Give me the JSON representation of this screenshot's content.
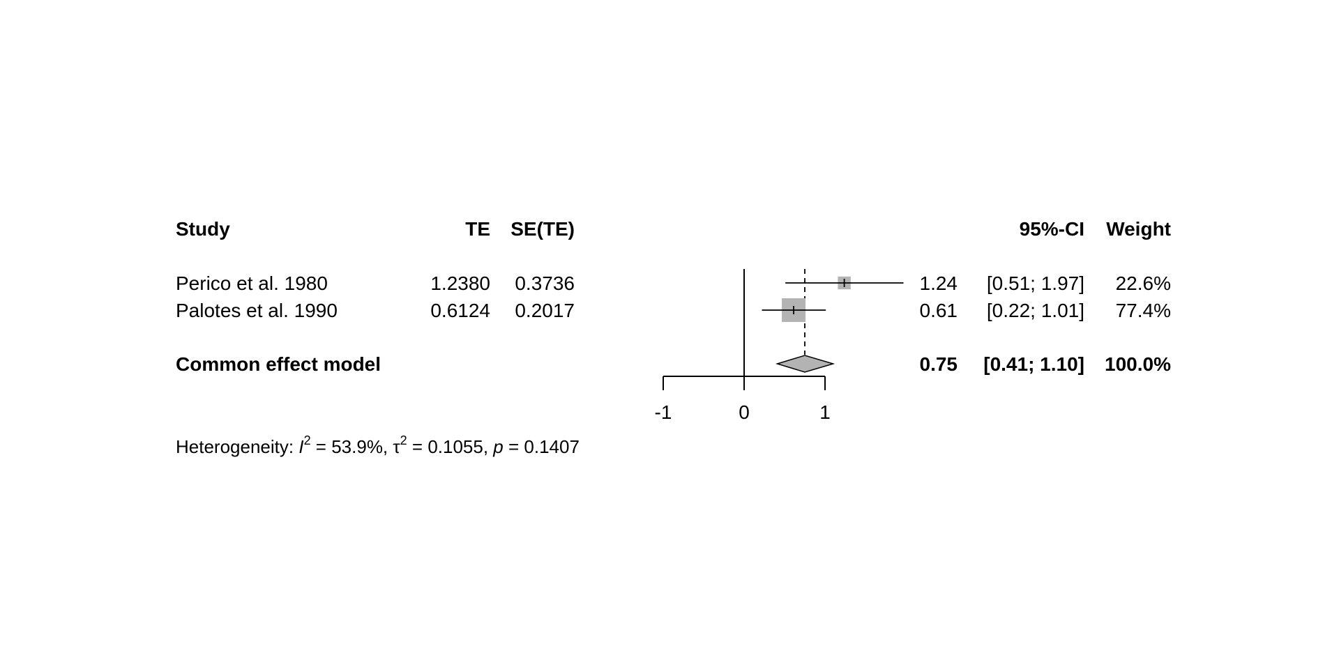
{
  "columns": {
    "study": "Study",
    "te": "TE",
    "se": "SE(TE)",
    "ci": "95%-CI",
    "weight": "Weight"
  },
  "studies": [
    {
      "study": "Perico et al. 1980",
      "te": "1.2380",
      "se": "0.3736",
      "est": "1.24",
      "ci": "[0.51; 1.97]",
      "weight": "22.6%"
    },
    {
      "study": "Palotes et al. 1990",
      "te": "0.6124",
      "se": "0.2017",
      "est": "0.61",
      "ci": "[0.22; 1.01]",
      "weight": "77.4%"
    }
  ],
  "pooled": {
    "label": "Common effect model",
    "est": "0.75",
    "ci": "[0.41; 1.10]",
    "weight": "100.0%"
  },
  "heterogeneity": {
    "prefix": "Heterogeneity: ",
    "i2_sym": "I",
    "sup": "2",
    "i2_val": " = 53.9%, ",
    "tau_sym": "τ",
    "tau_val": " = 0.1055, ",
    "p_sym": "p",
    "p_val": " = 0.1407"
  },
  "chart_data": {
    "type": "forest",
    "xlim": [
      -1,
      1
    ],
    "xticks": [
      "-1",
      "0",
      "1"
    ],
    "null_line": 0,
    "studies": [
      {
        "name": "Perico et al. 1980",
        "estimate": 1.238,
        "lower": 0.51,
        "upper": 1.97,
        "weight": 22.6
      },
      {
        "name": "Palotes et al. 1990",
        "estimate": 0.6124,
        "lower": 0.22,
        "upper": 1.01,
        "weight": 77.4
      }
    ],
    "pooled": {
      "name": "Common effect model",
      "estimate": 0.75,
      "lower": 0.41,
      "upper": 1.1,
      "weight": 100.0
    },
    "box_color": "#b3b3b3",
    "diamond_color": "#b3b3b3"
  }
}
